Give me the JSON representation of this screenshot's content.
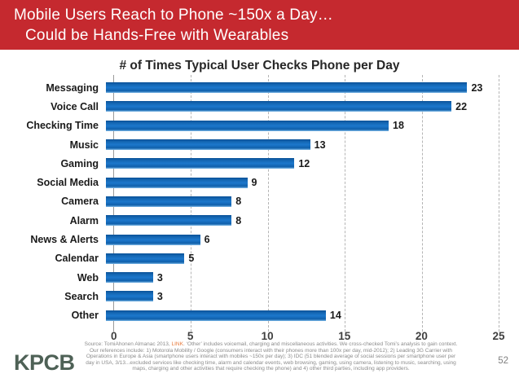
{
  "header": {
    "title_line1": "Mobile Users Reach to Phone ~150x a Day…",
    "title_line2": "Could be Hands-Free with Wearables",
    "bg_color": "#C5292F"
  },
  "chart_data": {
    "type": "bar",
    "orientation": "horizontal",
    "title": "# of Times Typical User Checks Phone per Day",
    "categories": [
      "Messaging",
      "Voice Call",
      "Checking Time",
      "Music",
      "Gaming",
      "Social Media",
      "Camera",
      "Alarm",
      "News & Alerts",
      "Calendar",
      "Web",
      "Search",
      "Other"
    ],
    "values": [
      23,
      22,
      18,
      13,
      12,
      9,
      8,
      8,
      6,
      5,
      3,
      3,
      14
    ],
    "xlabel": "",
    "ylabel": "",
    "xlim": [
      0,
      25
    ],
    "x_ticks": [
      0,
      5,
      10,
      15,
      20,
      25
    ],
    "bar_color": "#1467B3",
    "grid": "dashed-vertical-gridlines",
    "legend": "none",
    "value_labels": "end-of-bar"
  },
  "footer": {
    "source": {
      "line1_pre": "Source: TomiAhonen Almanac 2013, ",
      "line1_link": "LINK",
      "line1_post": ". ‘Other’ includes voicemail, charging and miscellaneous activities. We cross-checked Tomi’s analysis to gain context.",
      "line2": "Our references include: 1) Motorola Mobility / Google (consumers interact with their phones more than 100x per day, mid-2012); 2) Leading 3G Carrier with",
      "line3": "Operations in Europe & Asia (smartphone users interact with mobiles ~150x per day); 3) IDC (51 blended average of social sessions per smartphone user per",
      "line4": "day in USA, 3/13...excluded services like checking time, alarm and calendar events, web browsing, gaming, using camera, listening to music, searching, using",
      "line5": "maps, charging and other activities that require checking the phone) and 4) other third parties, including app providers."
    },
    "logo_text": "KPCB",
    "page_number": "52"
  }
}
